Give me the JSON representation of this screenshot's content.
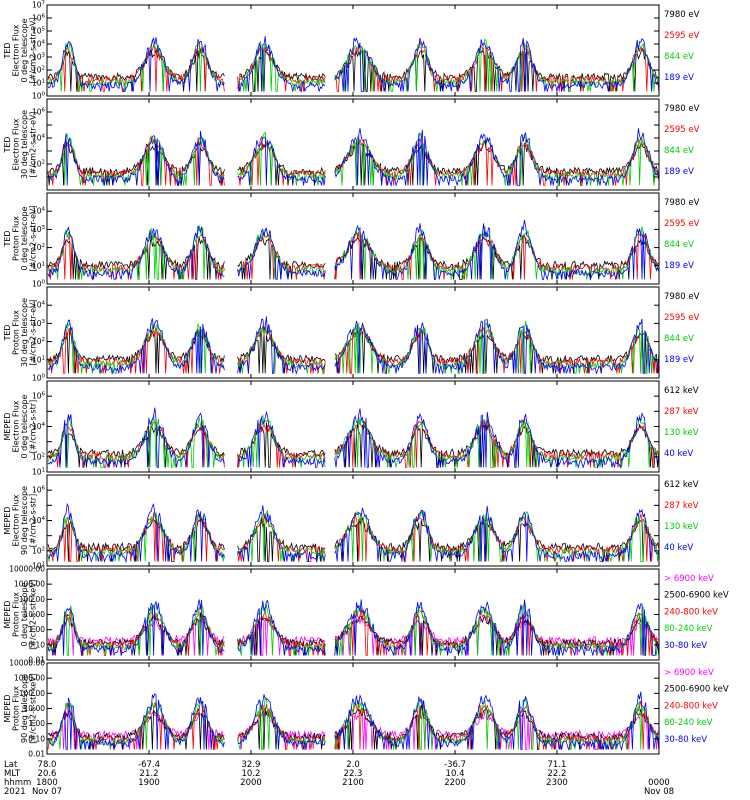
{
  "chart_data": [
    {
      "type": "line",
      "ylabel": [
        "TED",
        "Electron Flux",
        "0 deg telescope",
        "[#/cm2-s-str-eV]"
      ],
      "ylog": [
        0,
        7
      ],
      "yticks": [
        "10^0",
        "10^1",
        "10^2",
        "10^3",
        "10^4",
        "10^5",
        "10^6",
        "10^7"
      ],
      "series": [
        {
          "name": "7980 eV",
          "color": "#000000"
        },
        {
          "name": "2595 eV",
          "color": "#ff0000"
        },
        {
          "name": "844 eV",
          "color": "#00cc00"
        },
        {
          "name": "189 eV",
          "color": "#0000ff"
        }
      ]
    },
    {
      "type": "line",
      "ylabel": [
        "TED",
        "Electron Flux",
        "30 deg telescope",
        "[#/cm2-s-str-eV]"
      ],
      "ylog": [
        0,
        7
      ],
      "yticks": [
        "",
        "",
        "10^2",
        "",
        "10^4",
        "",
        "10^6",
        ""
      ],
      "series": [
        {
          "name": "7980 eV",
          "color": "#000000"
        },
        {
          "name": "2595 eV",
          "color": "#ff0000"
        },
        {
          "name": "844 eV",
          "color": "#00cc00"
        },
        {
          "name": "189 eV",
          "color": "#0000ff"
        }
      ]
    },
    {
      "type": "line",
      "ylabel": [
        "TED",
        "Proton Flux",
        "0 deg telescope",
        "[#/cm2-s-str-eV]"
      ],
      "ylog": [
        0,
        5
      ],
      "yticks": [
        "10^0",
        "10^1",
        "10^2",
        "10^3",
        "10^4",
        ""
      ],
      "series": [
        {
          "name": "7980 eV",
          "color": "#000000"
        },
        {
          "name": "2595 eV",
          "color": "#ff0000"
        },
        {
          "name": "844 eV",
          "color": "#00cc00"
        },
        {
          "name": "189 eV",
          "color": "#0000ff"
        }
      ]
    },
    {
      "type": "line",
      "ylabel": [
        "TED",
        "Proton Flux",
        "30 deg telescope",
        "[#/cm2-s-str-eV]"
      ],
      "ylog": [
        0,
        5
      ],
      "yticks": [
        "10^0",
        "10^1",
        "10^2",
        "10^3",
        "10^4",
        ""
      ],
      "series": [
        {
          "name": "7980 eV",
          "color": "#000000"
        },
        {
          "name": "2595 eV",
          "color": "#ff0000"
        },
        {
          "name": "844 eV",
          "color": "#00cc00"
        },
        {
          "name": "189 eV",
          "color": "#0000ff"
        }
      ]
    },
    {
      "type": "line",
      "ylabel": [
        "MEPED",
        "Electron Flux",
        "0 deg telescope",
        "[#/cm2-s-str]"
      ],
      "ylog": [
        1,
        7
      ],
      "yticks": [
        "10^1",
        "10^2",
        "",
        "10^4",
        "",
        "10^6",
        ""
      ],
      "series": [
        {
          "name": "612 keV",
          "color": "#000000"
        },
        {
          "name": "287 keV",
          "color": "#ff0000"
        },
        {
          "name": "130 keV",
          "color": "#00cc00"
        },
        {
          "name": "40 keV",
          "color": "#0000ff"
        }
      ]
    },
    {
      "type": "line",
      "ylabel": [
        "MEPED",
        "Electron Flux",
        "90 deg telescope",
        "[#/cm2-s-str]"
      ],
      "ylog": [
        1,
        7
      ],
      "yticks": [
        "10^1",
        "10^2",
        "",
        "10^4",
        "",
        "10^6",
        ""
      ],
      "series": [
        {
          "name": "612 keV",
          "color": "#000000"
        },
        {
          "name": "287 keV",
          "color": "#ff0000"
        },
        {
          "name": "130 keV",
          "color": "#00cc00"
        },
        {
          "name": "40 keV",
          "color": "#0000ff"
        }
      ]
    },
    {
      "type": "line",
      "ylabel": [
        "MEPED",
        "Proton Flux",
        "0 deg telescope",
        "[#/cm2-s-str-keV]"
      ],
      "ylog": [
        -2,
        4
      ],
      "yticks": [
        "0.01",
        "0.10",
        "1.00",
        "10.00",
        "100.00",
        "1000.00",
        "10000.00"
      ],
      "series": [
        {
          "name": "> 6900 keV",
          "color": "#ff00ff"
        },
        {
          "name": "2500-6900 keV",
          "color": "#000000"
        },
        {
          "name": "240-800 keV",
          "color": "#ff0000"
        },
        {
          "name": "80-240 keV",
          "color": "#00cc00"
        },
        {
          "name": "30-80 keV",
          "color": "#0000ff"
        }
      ]
    },
    {
      "type": "line",
      "ylabel": [
        "MEPED",
        "Proton Flux",
        "90 deg telescope",
        "[#/cm2-s-str-keV]"
      ],
      "ylog": [
        -2,
        4
      ],
      "yticks": [
        "0.01",
        "0.10",
        "1.00",
        "10.00",
        "100.00",
        "1000.00",
        "10000.00"
      ],
      "series": [
        {
          "name": "> 6900 keV",
          "color": "#ff00ff"
        },
        {
          "name": "2500-6900 keV",
          "color": "#000000"
        },
        {
          "name": "240-800 keV",
          "color": "#ff0000"
        },
        {
          "name": "80-240 keV",
          "color": "#00cc00"
        },
        {
          "name": "30-80 keV",
          "color": "#0000ff"
        }
      ]
    }
  ],
  "xaxis": {
    "row_labels": [
      "Lat",
      "MLT",
      "hhmm",
      "2021"
    ],
    "columns": [
      {
        "frac": 0.0,
        "lat": "78.0",
        "mlt": "20.6",
        "hhmm": "1800",
        "date": "Nov 07"
      },
      {
        "frac": 0.1667,
        "lat": "-67.4",
        "mlt": "21.2",
        "hhmm": "1900",
        "date": ""
      },
      {
        "frac": 0.3333,
        "lat": "32.9",
        "mlt": "10.2",
        "hhmm": "2000",
        "date": ""
      },
      {
        "frac": 0.5,
        "lat": "2.0",
        "mlt": "22.3",
        "hhmm": "2100",
        "date": ""
      },
      {
        "frac": 0.6667,
        "lat": "-36.7",
        "mlt": "10.4",
        "hhmm": "2200",
        "date": ""
      },
      {
        "frac": 0.8333,
        "lat": "71.1",
        "mlt": "22.2",
        "hhmm": "2300",
        "date": ""
      },
      {
        "frac": 1.0,
        "lat": "",
        "mlt": "",
        "hhmm": "0000",
        "date": "Nov 08"
      }
    ]
  }
}
